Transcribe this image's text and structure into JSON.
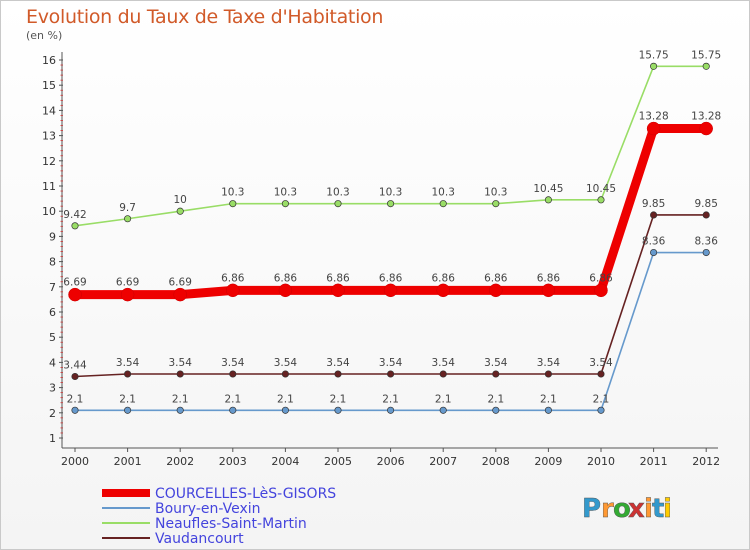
{
  "chart_data": {
    "type": "line",
    "title": "Evolution du Taux de Taxe d'Habitation",
    "unit_label": "(en %)",
    "categories": [
      "2000",
      "2001",
      "2002",
      "2003",
      "2004",
      "2005",
      "2006",
      "2007",
      "2008",
      "2009",
      "2010",
      "2011",
      "2012"
    ],
    "yticks": [
      "1",
      "2",
      "3",
      "4",
      "5",
      "6",
      "7",
      "8",
      "9",
      "10",
      "11",
      "12",
      "13",
      "14",
      "15",
      "16"
    ],
    "ylim": [
      1,
      16
    ],
    "grid": false,
    "legend_position": "bottom-left",
    "series": [
      {
        "name": "COURCELLES-LèS-GISORS",
        "color": "#ee0000",
        "values": [
          6.69,
          6.69,
          6.69,
          6.86,
          6.86,
          6.86,
          6.86,
          6.86,
          6.86,
          6.86,
          6.86,
          13.28,
          13.28
        ],
        "labels": [
          "6.69",
          "6.69",
          "6.69",
          "6.86",
          "6.86",
          "6.86",
          "6.86",
          "6.86",
          "6.86",
          "6.86",
          "6.86",
          "13.28",
          "13.28"
        ]
      },
      {
        "name": "Boury-en-Vexin",
        "color": "#6699cc",
        "values": [
          2.1,
          2.1,
          2.1,
          2.1,
          2.1,
          2.1,
          2.1,
          2.1,
          2.1,
          2.1,
          2.1,
          8.36,
          8.36
        ],
        "labels": [
          "2.1",
          "2.1",
          "2.1",
          "2.1",
          "2.1",
          "2.1",
          "2.1",
          "2.1",
          "2.1",
          "2.1",
          "2.1",
          "8.36",
          "8.36"
        ]
      },
      {
        "name": "Neaufles-Saint-Martin",
        "color": "#99dd66",
        "values": [
          9.42,
          9.7,
          10,
          10.3,
          10.3,
          10.3,
          10.3,
          10.3,
          10.3,
          10.45,
          10.45,
          15.75,
          15.75
        ],
        "labels": [
          "9.42",
          "9.7",
          "10",
          "10.3",
          "10.3",
          "10.3",
          "10.3",
          "10.3",
          "10.3",
          "10.45",
          "10.45",
          "15.75",
          "15.75"
        ]
      },
      {
        "name": "Vaudancourt",
        "color": "#662222",
        "values": [
          3.44,
          3.54,
          3.54,
          3.54,
          3.54,
          3.54,
          3.54,
          3.54,
          3.54,
          3.54,
          3.54,
          9.85,
          9.85
        ],
        "labels": [
          "3.44",
          "3.54",
          "3.54",
          "3.54",
          "3.54",
          "3.54",
          "3.54",
          "3.54",
          "3.54",
          "3.54",
          "3.54",
          "9.85",
          "9.85"
        ]
      }
    ]
  },
  "logo": {
    "letters": [
      "P",
      "r",
      "o",
      "x",
      "i",
      "t",
      "i"
    ],
    "colors": [
      "#3399cc",
      "#ff9933",
      "#33aa33",
      "#cc3333",
      "#ff9933",
      "#3399cc",
      "#ffcc00"
    ]
  }
}
